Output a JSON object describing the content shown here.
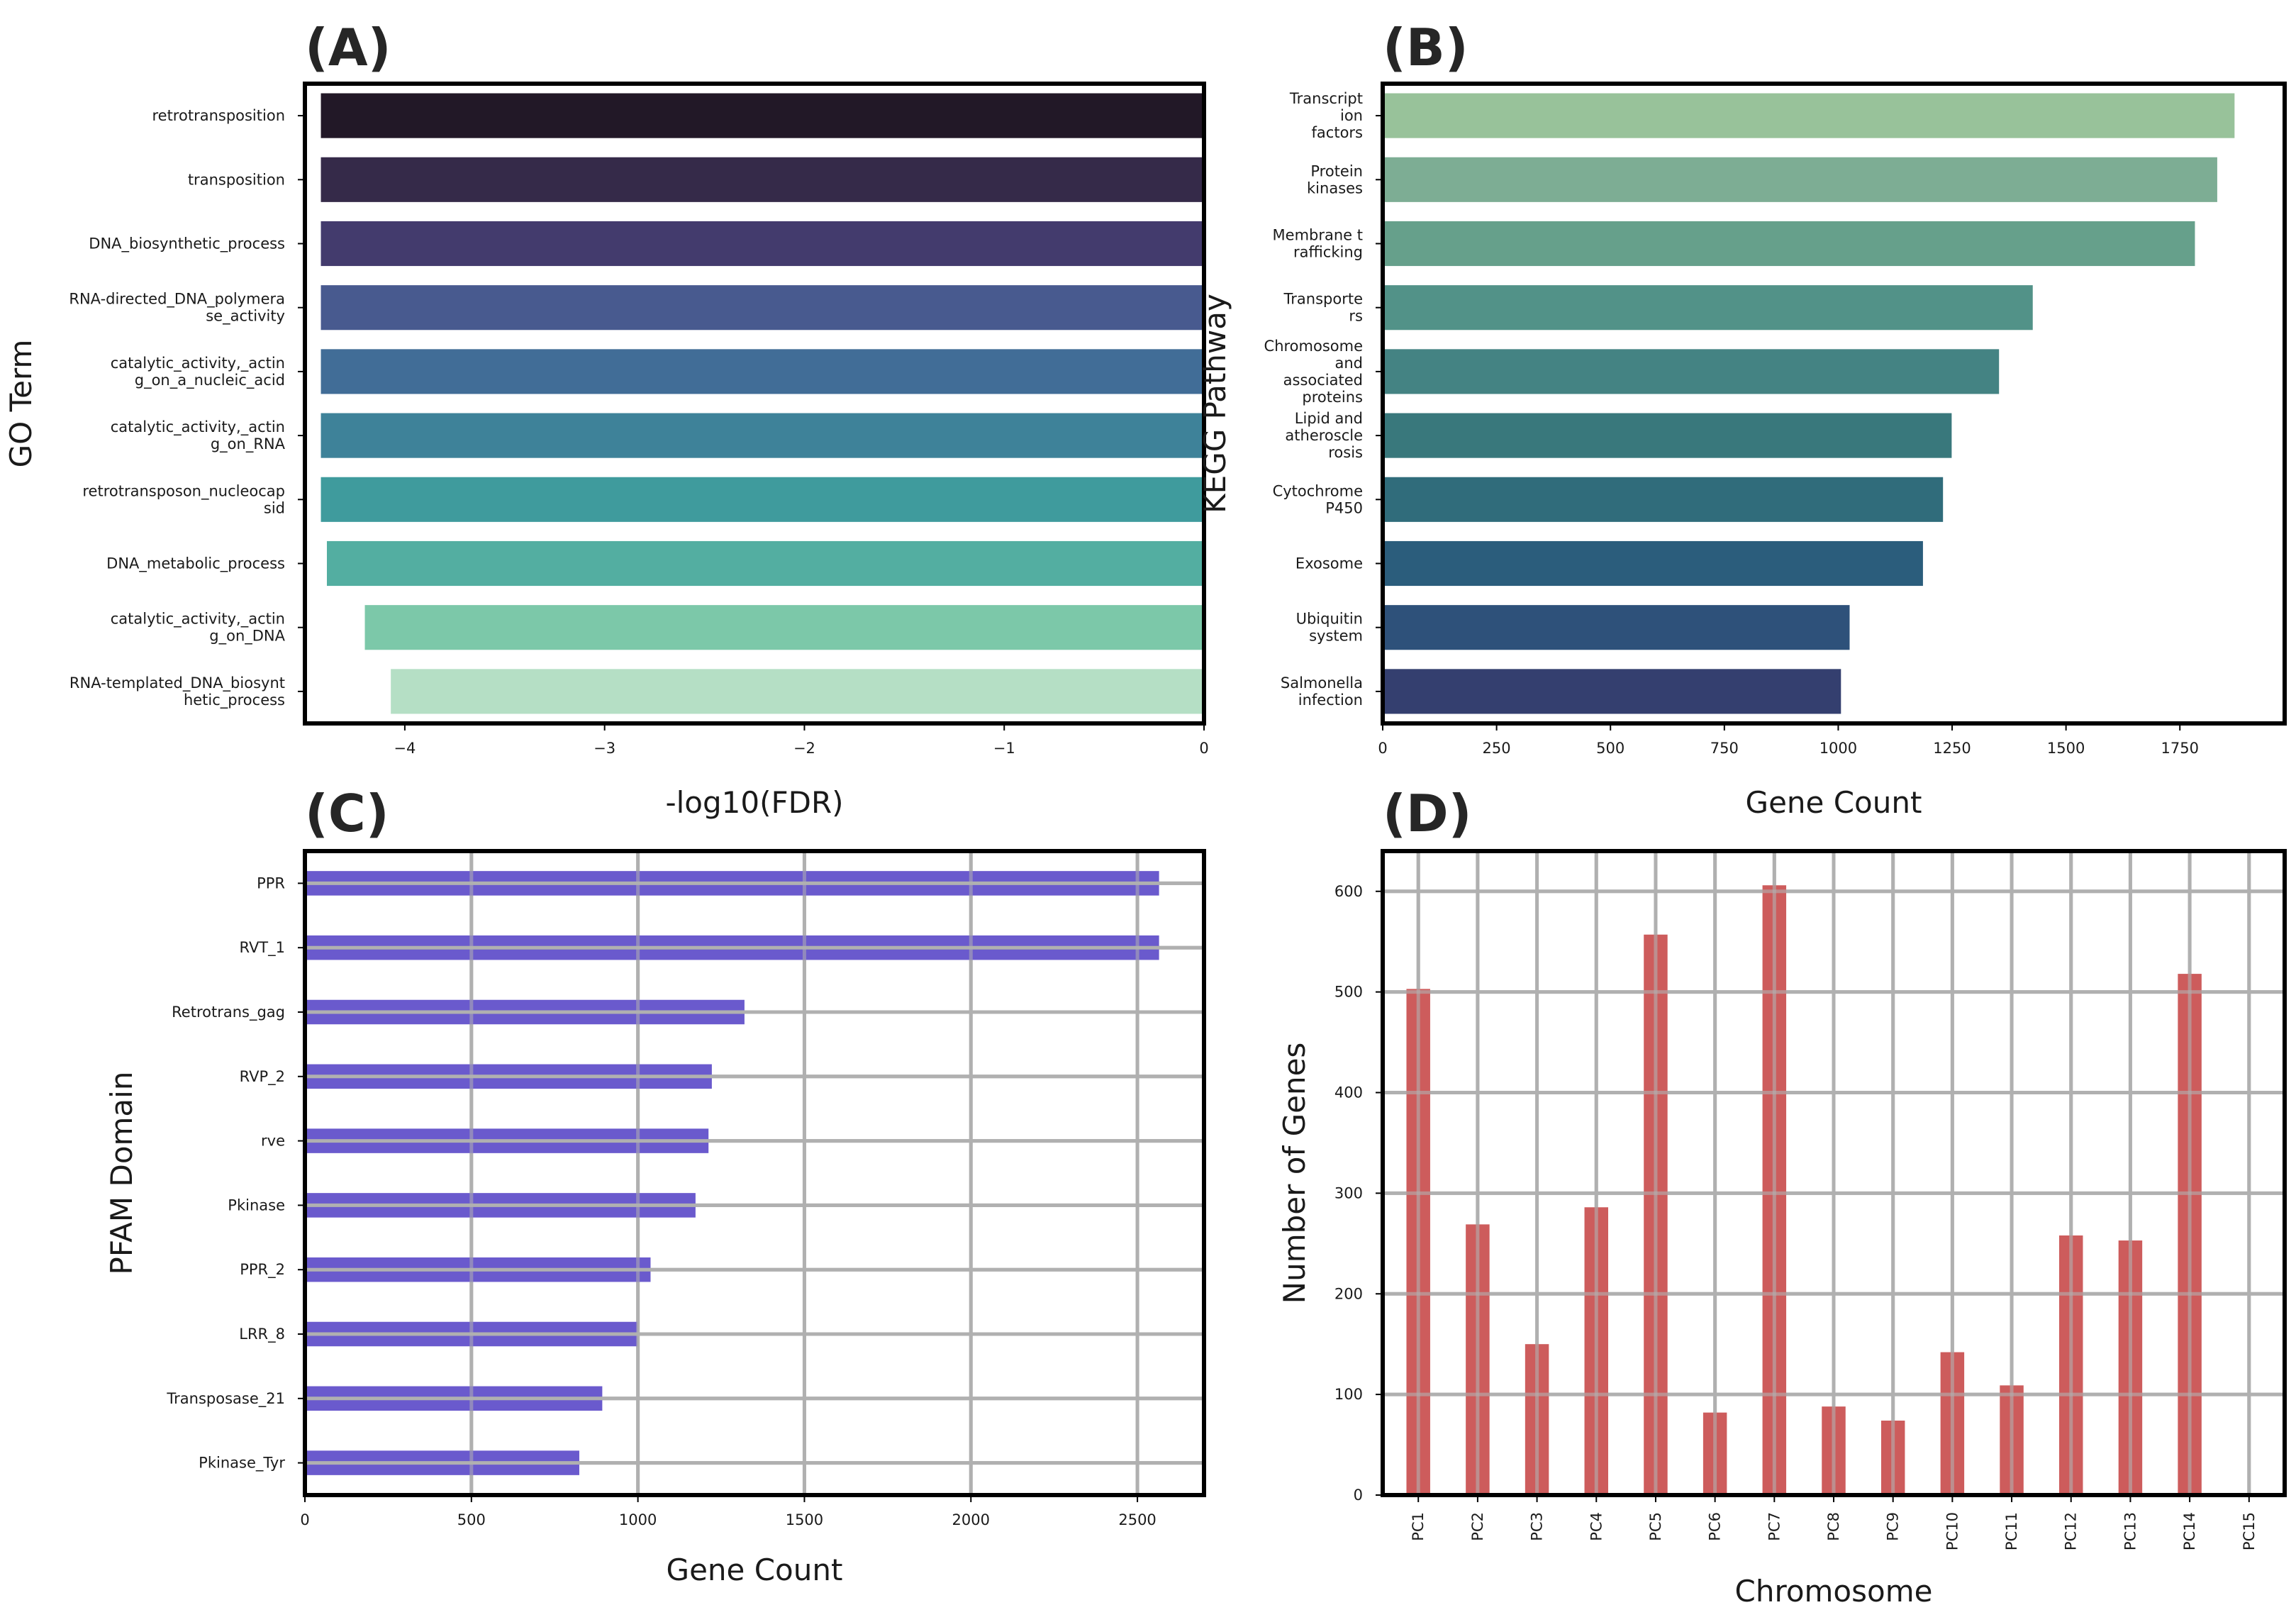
{
  "chart_data": [
    {
      "id": "A",
      "type": "bar",
      "orientation": "horizontal",
      "panel_label": "(A)",
      "xlabel": "-log10(FDR)",
      "ylabel": "GO Term",
      "xlim": [
        -4.5,
        0
      ],
      "xticks": [
        -4,
        -3,
        -2,
        -1,
        0
      ],
      "xtick_labels": [
        "−4",
        "−3",
        "−2",
        "−1",
        "0"
      ],
      "grid": false,
      "categories": [
        [
          "retrotransposition"
        ],
        [
          "transposition"
        ],
        [
          "DNA_biosynthetic_process"
        ],
        [
          "RNA-directed_DNA_polymera",
          "se_activity"
        ],
        [
          "catalytic_activity,_actin",
          "g_on_a_nucleic_acid"
        ],
        [
          "catalytic_activity,_actin",
          "g_on_RNA"
        ],
        [
          "retrotransposon_nucleocap",
          "sid"
        ],
        [
          "DNA_metabolic_process"
        ],
        [
          "catalytic_activity,_actin",
          "g_on_DNA"
        ],
        [
          "RNA-templated_DNA_biosynt",
          "hetic_process"
        ]
      ],
      "values": [
        -4.42,
        -4.42,
        -4.42,
        -4.42,
        -4.42,
        -4.42,
        -4.42,
        -4.39,
        -4.2,
        -4.07
      ],
      "colors": [
        "#221827",
        "#352a49",
        "#433b6d",
        "#485a8f",
        "#416d97",
        "#3e8299",
        "#3f9b9d",
        "#53aea1",
        "#7cc8a9",
        "#b5dfc5"
      ]
    },
    {
      "id": "B",
      "type": "bar",
      "orientation": "horizontal",
      "panel_label": "(B)",
      "xlabel": "Gene Count",
      "ylabel": "KEGG Pathway",
      "xlim": [
        0,
        1980
      ],
      "xticks": [
        0,
        250,
        500,
        750,
        1000,
        1250,
        1500,
        1750
      ],
      "xtick_labels": [
        "0",
        "250",
        "500",
        "750",
        "1000",
        "1250",
        "1500",
        "1750"
      ],
      "grid": false,
      "categories": [
        [
          "Transcript",
          "ion",
          "factors"
        ],
        [
          "Protein",
          "kinases"
        ],
        [
          "Membrane t",
          "rafficking"
        ],
        [
          "Transporte",
          "rs"
        ],
        [
          "Chromosome",
          "and",
          "associated",
          "proteins"
        ],
        [
          "Lipid and",
          "atheroscle",
          "rosis"
        ],
        [
          "Cytochrome",
          "P450"
        ],
        [
          "Exosome"
        ],
        [
          "Ubiquitin",
          "system"
        ],
        [
          "Salmonella",
          "infection"
        ]
      ],
      "values": [
        1870,
        1832,
        1783,
        1427,
        1353,
        1249,
        1230,
        1186,
        1025,
        1006
      ],
      "colors": [
        "#98c29a",
        "#7dad94",
        "#66a08b",
        "#529288",
        "#448383",
        "#39787c",
        "#306c7b",
        "#2b5d7c",
        "#2e517a",
        "#343f6f"
      ]
    },
    {
      "id": "C",
      "type": "bar",
      "orientation": "horizontal",
      "panel_label": "(C)",
      "xlabel": "Gene Count",
      "ylabel": "PFAM Domain",
      "xlim": [
        0,
        2700
      ],
      "xticks": [
        0,
        500,
        1000,
        1500,
        2000,
        2500
      ],
      "xtick_labels": [
        "0",
        "500",
        "1000",
        "1500",
        "2000",
        "2500"
      ],
      "grid": true,
      "categories": [
        [
          "PPR"
        ],
        [
          "RVT_1"
        ],
        [
          "Retrotrans_gag"
        ],
        [
          "RVP_2"
        ],
        [
          "rve"
        ],
        [
          "Pkinase"
        ],
        [
          "PPR_2"
        ],
        [
          "LRR_8"
        ],
        [
          "Transposase_21"
        ],
        [
          "Pkinase_Tyr"
        ]
      ],
      "values": [
        2565,
        2565,
        1320,
        1222,
        1212,
        1173,
        1038,
        998,
        893,
        824
      ],
      "colors": [
        "#6a5acd"
      ]
    },
    {
      "id": "D",
      "type": "bar",
      "orientation": "vertical",
      "panel_label": "(D)",
      "xlabel": "Chromosome",
      "ylabel": "Number of Genes",
      "ylim": [
        0,
        640
      ],
      "yticks": [
        0,
        100,
        200,
        300,
        400,
        500,
        600
      ],
      "ytick_labels": [
        "0",
        "100",
        "200",
        "300",
        "400",
        "500",
        "600"
      ],
      "grid": true,
      "categories": [
        "PC1",
        "PC2",
        "PC3",
        "PC4",
        "PC5",
        "PC6",
        "PC7",
        "PC8",
        "PC9",
        "PC10",
        "PC11",
        "PC12",
        "PC13",
        "PC14",
        "PC15"
      ],
      "values": [
        503,
        269,
        150,
        286,
        557,
        82,
        606,
        88,
        74,
        142,
        109,
        258,
        253,
        518,
        0
      ],
      "colors": [
        "#cd5c5c"
      ]
    }
  ]
}
